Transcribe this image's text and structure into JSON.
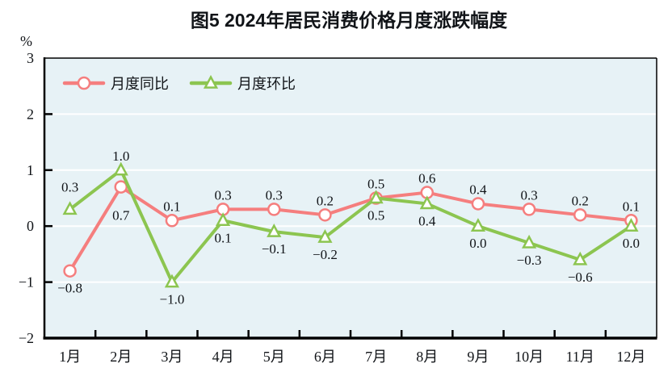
{
  "title": "图5  2024年居民消费价格月度涨跌幅度",
  "unit_label": "%",
  "chart_data": {
    "type": "line",
    "title": "图5  2024年居民消费价格月度涨跌幅度",
    "unit": "%",
    "categories": [
      "1月",
      "2月",
      "3月",
      "4月",
      "5月",
      "6月",
      "7月",
      "8月",
      "9月",
      "10月",
      "11月",
      "12月"
    ],
    "series": [
      {
        "id": "yoy",
        "name": "月度同比",
        "color": "#f57e7e",
        "marker": "circle",
        "values": [
          -0.8,
          0.7,
          0.1,
          0.3,
          0.3,
          0.2,
          0.5,
          0.6,
          0.4,
          0.3,
          0.2,
          0.1
        ],
        "labels": [
          "-0.8",
          "0.7",
          "0.1",
          "0.3",
          "0.3",
          "0.2",
          "0.5",
          "0.6",
          "0.4",
          "0.3",
          "0.2",
          "0.1"
        ],
        "label_side": [
          "below",
          "below",
          "above",
          "above",
          "above",
          "above",
          "above",
          "above",
          "above",
          "above",
          "above",
          "above"
        ],
        "label_nudges": {
          "1": [
            0,
            14
          ]
        }
      },
      {
        "id": "mom",
        "name": "月度环比",
        "color": "#8cc550",
        "marker": "triangle",
        "values": [
          0.3,
          1.0,
          -1.0,
          0.1,
          -0.1,
          -0.2,
          0.5,
          0.4,
          0.0,
          -0.3,
          -0.6,
          0.0
        ],
        "labels": [
          "0.3",
          "1.0",
          "-1.0",
          "0.1",
          "-0.1",
          "-0.2",
          "0.5",
          "0.4",
          "0.0",
          "-0.3",
          "-0.6",
          "0.0"
        ],
        "label_side": [
          "above",
          "above",
          "below",
          "below",
          "below",
          "below",
          "below",
          "below",
          "below",
          "below",
          "below",
          "below"
        ],
        "label_nudges": {
          "0": [
            0,
            -10
          ]
        }
      }
    ],
    "ylim": [
      -2,
      3
    ],
    "yticks": [
      3,
      2,
      1,
      0,
      -1,
      -2
    ],
    "grid": true,
    "legend_position": "inside-top-left",
    "plot_background": "#e7f2f6",
    "gridline_color": "#ffffff",
    "axis_color": "#000000",
    "marker_fill": "#ffffff",
    "label_color": "#111418"
  }
}
